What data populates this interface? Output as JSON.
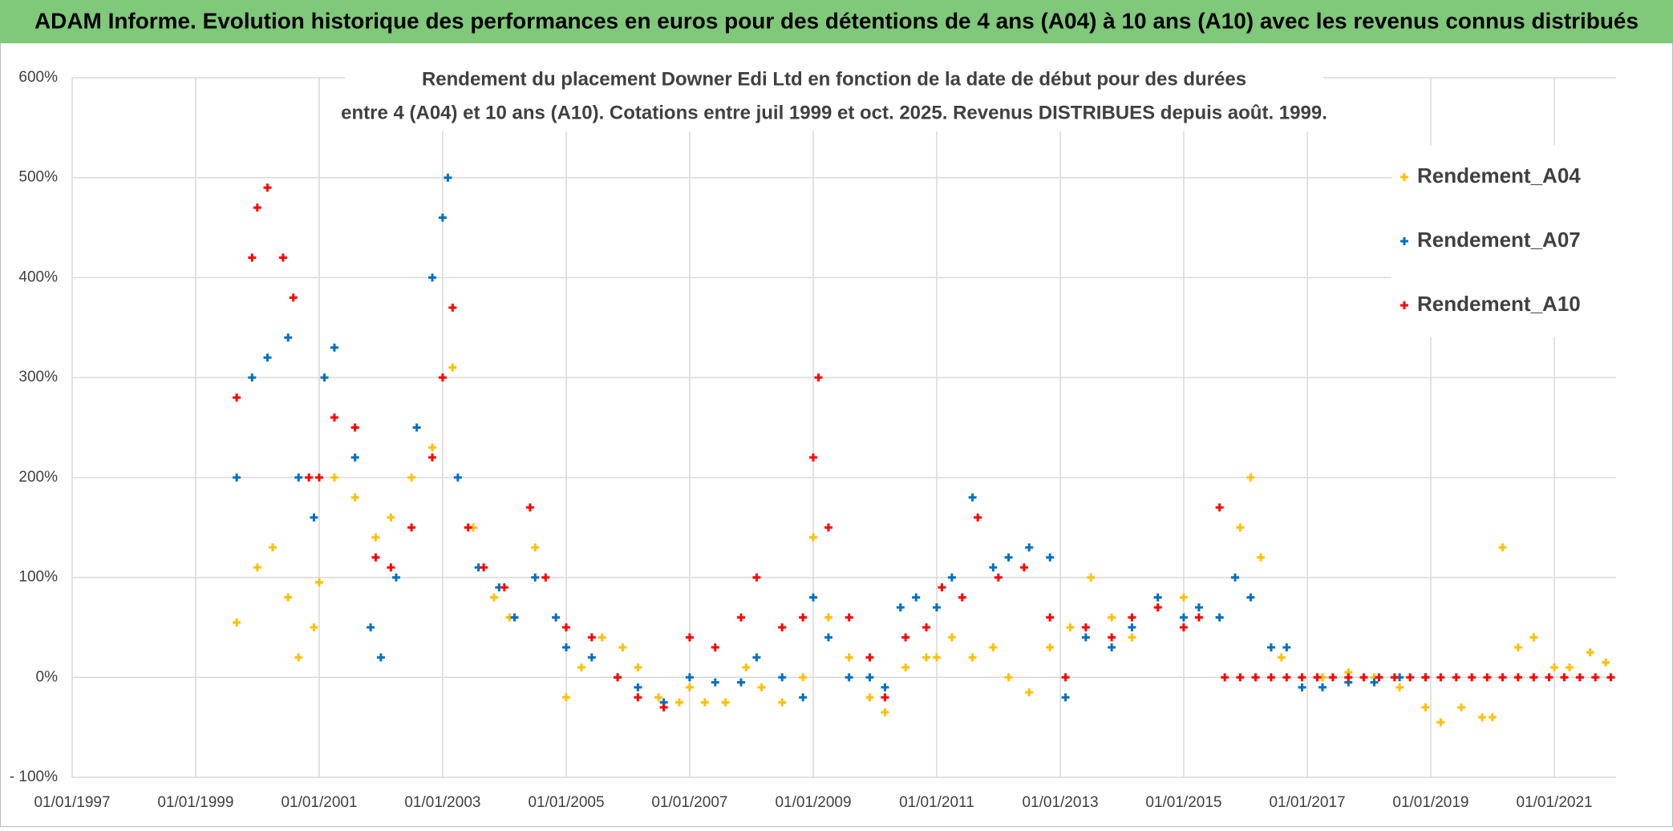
{
  "chart_data": {
    "type": "scatter",
    "header": "ADAM Informe. Evolution historique des performances en euros pour des détentions de 4 ans (A04) à 10 ans (A10) avec les revenus connus distribués",
    "title": [
      "Rendement du placement Downer Edi Ltd en fonction de la date de début pour des durées",
      "entre 4 (A04) et 10 ans (A10). Cotations entre juil 1999 et oct. 2025. Revenus DISTRIBUES depuis août. 1999."
    ],
    "xlim": [
      "1997-01-01",
      "2022-01-01"
    ],
    "xticks": [
      {
        "value": "1997-01-01",
        "label": "01/01/1997"
      },
      {
        "value": "1999-01-01",
        "label": "01/01/1999"
      },
      {
        "value": "2001-01-01",
        "label": "01/01/2001"
      },
      {
        "value": "2003-01-01",
        "label": "01/01/2003"
      },
      {
        "value": "2005-01-01",
        "label": "01/01/2005"
      },
      {
        "value": "2007-01-01",
        "label": "01/01/2007"
      },
      {
        "value": "2009-01-01",
        "label": "01/01/2009"
      },
      {
        "value": "2011-01-01",
        "label": "01/01/2011"
      },
      {
        "value": "2013-01-01",
        "label": "01/01/2013"
      },
      {
        "value": "2015-01-01",
        "label": "01/01/2015"
      },
      {
        "value": "2017-01-01",
        "label": "01/01/2017"
      },
      {
        "value": "2019-01-01",
        "label": "01/01/2019"
      },
      {
        "value": "2021-01-01",
        "label": "01/01/2021"
      }
    ],
    "ylim": [
      -100,
      600
    ],
    "yticks": [
      {
        "value": -100,
        "label": "- 100%"
      },
      {
        "value": 0,
        "label": "0%"
      },
      {
        "value": 100,
        "label": "100%"
      },
      {
        "value": 200,
        "label": "200%"
      },
      {
        "value": 300,
        "label": "300%"
      },
      {
        "value": 400,
        "label": "400%"
      },
      {
        "value": 500,
        "label": "500%"
      },
      {
        "value": 600,
        "label": "600%"
      }
    ],
    "grid": true,
    "legend": "upper right",
    "series": [
      {
        "name": "Rendement_A04",
        "color": "#ffc000",
        "x": [
          "1999-09-01",
          "2000-01-01",
          "2000-04-01",
          "2000-07-01",
          "2000-09-01",
          "2000-12-01",
          "2001-01-01",
          "2001-04-01",
          "2001-08-01",
          "2001-12-01",
          "2002-03-01",
          "2002-07-01",
          "2002-11-01",
          "2003-01-01",
          "2003-03-01",
          "2003-07-01",
          "2003-11-01",
          "2004-02-01",
          "2004-07-01",
          "2004-11-01",
          "2005-01-01",
          "2005-04-01",
          "2005-08-01",
          "2005-12-01",
          "2006-03-01",
          "2006-07-01",
          "2006-11-01",
          "2007-01-01",
          "2007-04-01",
          "2007-08-01",
          "2007-12-01",
          "2008-03-01",
          "2008-07-01",
          "2008-11-01",
          "2009-01-01",
          "2009-04-01",
          "2009-08-01",
          "2009-12-01",
          "2010-03-01",
          "2010-07-01",
          "2010-11-01",
          "2011-01-01",
          "2011-04-01",
          "2011-08-01",
          "2011-12-01",
          "2012-03-01",
          "2012-07-01",
          "2012-11-01",
          "2013-03-01",
          "2013-07-01",
          "2013-11-01",
          "2014-03-01",
          "2014-08-01",
          "2015-01-01",
          "2015-04-01",
          "2015-08-01",
          "2015-12-01",
          "2016-02-01",
          "2016-04-01",
          "2016-08-01",
          "2016-12-01",
          "2017-04-01",
          "2017-09-01",
          "2018-02-01",
          "2018-07-01",
          "2018-12-01",
          "2019-03-01",
          "2019-07-01",
          "2019-11-01",
          "2020-01-01",
          "2020-03-01",
          "2020-06-01",
          "2020-09-01",
          "2021-01-01",
          "2021-04-01",
          "2021-08-01",
          "2021-11-01"
        ],
        "values": [
          55,
          110,
          130,
          80,
          20,
          50,
          95,
          200,
          180,
          140,
          160,
          200,
          230,
          300,
          310,
          150,
          80,
          60,
          130,
          60,
          -20,
          10,
          40,
          30,
          10,
          -20,
          -25,
          -10,
          -25,
          -25,
          10,
          -10,
          -25,
          0,
          140,
          60,
          20,
          -20,
          -35,
          10,
          20,
          20,
          40,
          20,
          30,
          0,
          -15,
          30,
          50,
          100,
          60,
          40,
          70,
          80,
          70,
          60,
          150,
          200,
          120,
          20,
          0,
          0,
          5,
          0,
          -10,
          -30,
          -45,
          -30,
          -40,
          -40,
          130,
          30,
          40,
          10,
          10,
          25,
          15
        ]
      },
      {
        "name": "Rendement_A07",
        "color": "#0070c0",
        "x": [
          "1999-09-01",
          "1999-12-01",
          "2000-03-01",
          "2000-07-01",
          "2000-09-01",
          "2000-12-01",
          "2001-02-01",
          "2001-04-01",
          "2001-08-01",
          "2001-11-01",
          "2002-01-01",
          "2002-04-01",
          "2002-08-01",
          "2002-11-01",
          "2003-01-01",
          "2003-02-01",
          "2003-04-01",
          "2003-08-01",
          "2003-12-01",
          "2004-03-01",
          "2004-07-01",
          "2004-11-01",
          "2005-01-01",
          "2005-06-01",
          "2005-11-01",
          "2006-03-01",
          "2006-08-01",
          "2007-01-01",
          "2007-06-01",
          "2007-11-01",
          "2008-02-01",
          "2008-07-01",
          "2008-11-01",
          "2009-01-01",
          "2009-04-01",
          "2009-08-01",
          "2009-12-01",
          "2010-03-01",
          "2010-06-01",
          "2010-09-01",
          "2011-01-01",
          "2011-04-01",
          "2011-08-01",
          "2011-12-01",
          "2012-03-01",
          "2012-07-01",
          "2012-11-01",
          "2013-02-01",
          "2013-06-01",
          "2013-11-01",
          "2014-03-01",
          "2014-08-01",
          "2015-01-01",
          "2015-04-01",
          "2015-08-01",
          "2015-11-01",
          "2016-02-01",
          "2016-06-01",
          "2016-09-01",
          "2016-12-01",
          "2017-04-01",
          "2017-09-01",
          "2018-02-01",
          "2018-07-01",
          "2018-12-01"
        ],
        "values": [
          200,
          300,
          320,
          340,
          200,
          160,
          300,
          330,
          220,
          50,
          20,
          100,
          250,
          400,
          460,
          500,
          200,
          110,
          90,
          60,
          100,
          60,
          30,
          20,
          0,
          -10,
          -25,
          0,
          -5,
          -5,
          20,
          0,
          -20,
          80,
          40,
          0,
          0,
          -10,
          70,
          80,
          70,
          100,
          180,
          110,
          120,
          130,
          120,
          -20,
          40,
          30,
          50,
          80,
          60,
          70,
          60,
          100,
          80,
          30,
          30,
          -10,
          -10,
          -5,
          -5,
          0,
          0
        ]
      },
      {
        "name": "Rendement_A10",
        "color": "#ff0000",
        "x": [
          "1999-09-01",
          "1999-12-01",
          "2000-01-01",
          "2000-03-01",
          "2000-06-01",
          "2000-08-01",
          "2000-11-01",
          "2001-01-01",
          "2001-04-01",
          "2001-08-01",
          "2001-12-01",
          "2002-03-01",
          "2002-07-01",
          "2002-11-01",
          "2003-01-01",
          "2003-03-01",
          "2003-06-01",
          "2003-09-01",
          "2004-01-01",
          "2004-06-01",
          "2004-09-01",
          "2005-01-01",
          "2005-06-01",
          "2005-11-01",
          "2006-03-01",
          "2006-08-01",
          "2007-01-01",
          "2007-06-01",
          "2007-11-01",
          "2008-02-01",
          "2008-07-01",
          "2008-11-01",
          "2009-01-01",
          "2009-02-01",
          "2009-04-01",
          "2009-08-01",
          "2009-12-01",
          "2010-03-01",
          "2010-07-01",
          "2010-11-01",
          "2011-02-01",
          "2011-06-01",
          "2011-09-01",
          "2012-01-01",
          "2012-06-01",
          "2012-11-01",
          "2013-02-01",
          "2013-06-01",
          "2013-11-01",
          "2014-03-01",
          "2014-08-01",
          "2015-01-01",
          "2015-04-01",
          "2015-08-01",
          "2015-09-01",
          "2015-12-01",
          "2016-03-01",
          "2016-06-01",
          "2016-09-01",
          "2016-12-01",
          "2017-03-01",
          "2017-06-01",
          "2017-09-01",
          "2017-12-01",
          "2018-03-01",
          "2018-06-01",
          "2018-09-01",
          "2018-12-01",
          "2019-03-01",
          "2019-06-01",
          "2019-09-01",
          "2019-12-01",
          "2020-03-01",
          "2020-06-01",
          "2020-09-01",
          "2020-12-01",
          "2021-03-01",
          "2021-06-01",
          "2021-09-01",
          "2021-12-01"
        ],
        "values": [
          280,
          420,
          470,
          490,
          420,
          380,
          200,
          200,
          260,
          250,
          120,
          110,
          150,
          220,
          300,
          370,
          150,
          110,
          90,
          170,
          100,
          50,
          40,
          0,
          -20,
          -30,
          40,
          30,
          60,
          100,
          50,
          60,
          220,
          300,
          150,
          60,
          20,
          -20,
          40,
          50,
          90,
          80,
          160,
          100,
          110,
          60,
          0,
          50,
          40,
          60,
          70,
          50,
          60,
          170,
          0,
          0,
          0,
          0,
          0,
          0,
          0,
          0,
          0,
          0,
          0,
          0,
          0,
          0,
          0,
          0,
          0,
          0,
          0,
          0,
          0,
          0,
          0,
          0,
          0,
          0
        ]
      }
    ]
  }
}
